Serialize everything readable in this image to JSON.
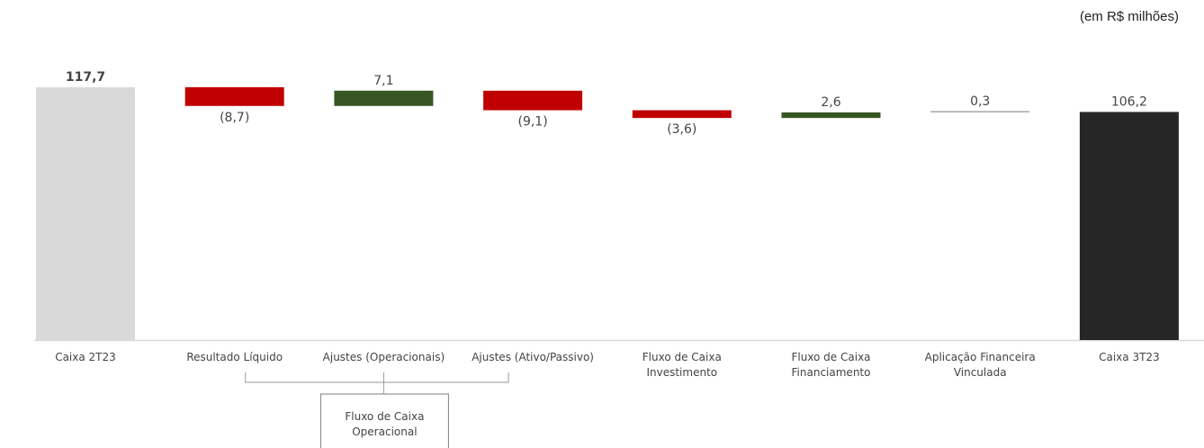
{
  "unit_note": "(em R$ milhões)",
  "colors": {
    "start": "#d9d9d9",
    "end": "#262626",
    "negative": "#c00000",
    "positive": "#375623",
    "neutral": "#a6a6a6",
    "axis": "#d9d9d9"
  },
  "chart_data": {
    "type": "bar",
    "subtype": "waterfall",
    "title": "",
    "categories": [
      [
        "Caixa 2T23"
      ],
      [
        "Resultado Líquido"
      ],
      [
        "Ajustes (Operacionais)"
      ],
      [
        "Ajustes (Ativo/Passivo)"
      ],
      [
        "Fluxo de Caixa",
        "Investimento"
      ],
      [
        "Fluxo de Caixa",
        "Financiamento"
      ],
      [
        "Aplicação Financeira",
        "Vinculada"
      ],
      [
        "Caixa 3T23"
      ]
    ],
    "values": [
      117.7,
      -8.7,
      7.1,
      -9.1,
      -3.6,
      2.6,
      0.3,
      106.2
    ],
    "kinds": [
      "start",
      "negative",
      "positive",
      "negative",
      "negative",
      "positive",
      "neutral",
      "end"
    ],
    "data_labels": [
      "117,7",
      "(8,7)",
      "7,1",
      "(9,1)",
      "(3,6)",
      "2,6",
      "0,3",
      "106,2"
    ],
    "ylim": [
      0,
      117.7
    ],
    "grid": false,
    "bracket": {
      "spans_categories": [
        1,
        3
      ],
      "label_lines": [
        "Fluxo de Caixa",
        "Operacional"
      ]
    }
  }
}
